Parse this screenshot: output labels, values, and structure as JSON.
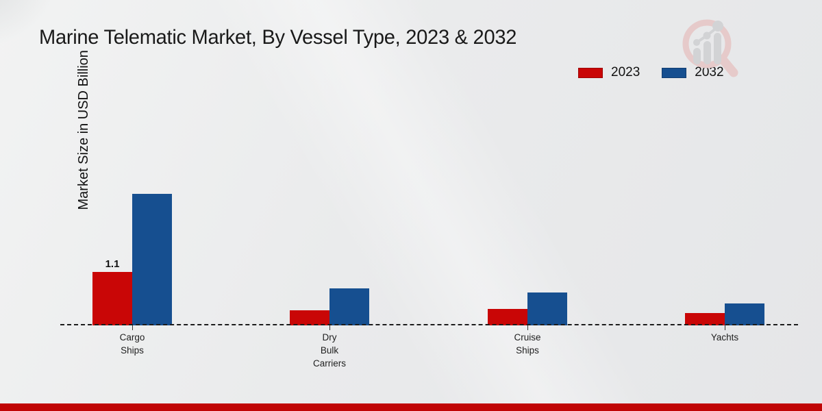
{
  "title": "Marine Telematic Market, By Vessel Type, 2023 & 2032",
  "y_axis_label": "Market Size in USD Billion",
  "legend": {
    "items": [
      {
        "label": "2023",
        "color": "#c90606"
      },
      {
        "label": "2032",
        "color": "#164f90"
      }
    ]
  },
  "watermark_icon": "magnifier-growth-chart-logo",
  "footer_bar_color": "#c00505",
  "chart_data": {
    "type": "bar",
    "title": "Marine Telematic Market, By Vessel Type, 2023 & 2032",
    "ylabel": "Market Size in USD Billion",
    "ylim": [
      0,
      3
    ],
    "grid": false,
    "legend_position": "top-right",
    "baseline_style": "dashed",
    "categories": [
      "Cargo Ships",
      "Dry Bulk Carriers",
      "Cruise Ships",
      "Yachts"
    ],
    "category_lines": [
      [
        "Cargo",
        "Ships"
      ],
      [
        "Dry",
        "Bulk",
        "Carriers"
      ],
      [
        "Cruise",
        "Ships"
      ],
      [
        "Yachts"
      ]
    ],
    "series": [
      {
        "name": "2023",
        "color": "#c90606",
        "values": [
          1.1,
          0.31,
          0.34,
          0.25
        ]
      },
      {
        "name": "2032",
        "color": "#164f90",
        "values": [
          2.71,
          0.76,
          0.68,
          0.45
        ]
      }
    ],
    "value_labels": [
      {
        "series_index": 0,
        "category_index": 0,
        "text": "1.1"
      }
    ]
  }
}
